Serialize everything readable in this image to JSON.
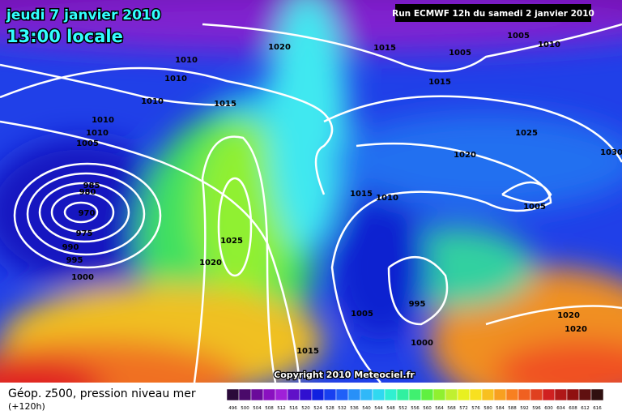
{
  "header": {
    "date": "jeudi 7 janvier 2010",
    "time": "13:00 locale",
    "run": "Run ECMWF 12h du samedi 2 janvier 2010"
  },
  "isobar_labels": [
    1020,
    1015,
    1005,
    1010,
    1005,
    1015,
    1010,
    1010,
    1010,
    1015,
    1010,
    1010,
    1005,
    985,
    980,
    970,
    975,
    990,
    995,
    1000,
    1025,
    1020,
    1025,
    1020,
    1030,
    1015,
    1010,
    1005,
    995,
    1005,
    1000,
    1015,
    1020,
    1020
  ],
  "copyright": "Copyright 2010 Meteociel.fr",
  "legend": {
    "title": "Géop. z500, pression niveau mer",
    "lead": "(+120h)",
    "scale": [
      496,
      500,
      504,
      508,
      512,
      516,
      520,
      524,
      528,
      532,
      536,
      540,
      544,
      548,
      552,
      556,
      560,
      564,
      568,
      572,
      576,
      580,
      584,
      588,
      592,
      596,
      600,
      604,
      608,
      612,
      616
    ]
  }
}
